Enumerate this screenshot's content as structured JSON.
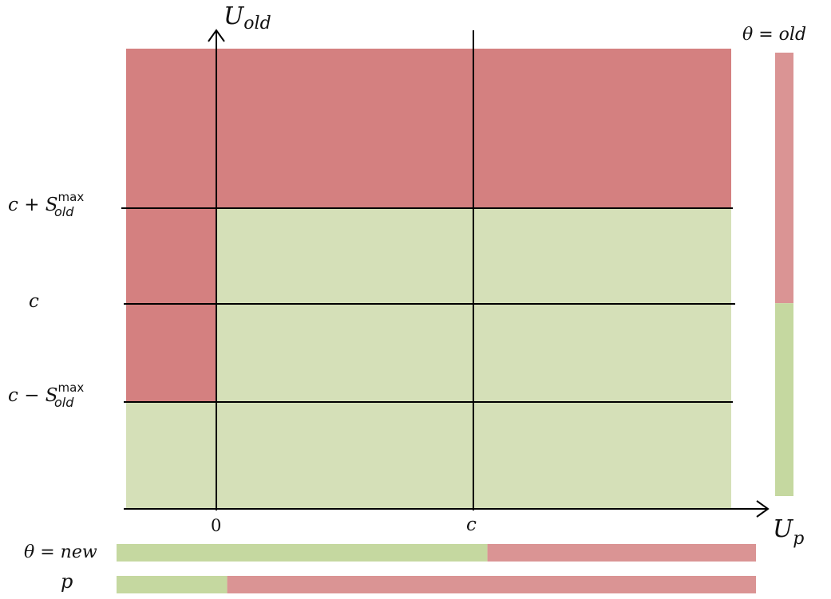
{
  "colors": {
    "red_region": "#D48080",
    "green_region": "#D5E0B8",
    "bar_red": "#DA9494",
    "bar_green": "#C5D8A0",
    "axis": "#000000"
  },
  "axes": {
    "y_label_main": "U",
    "y_label_sub": "old",
    "x_label_main": "U",
    "x_label_sub": "p",
    "x_tick_zero": "0",
    "x_tick_c": "c",
    "y_tick_c": "c",
    "y_tick_upper": {
      "prefix": "c + S",
      "sup": "max",
      "sub": "old"
    },
    "y_tick_lower": {
      "prefix": "c − S",
      "sup": "max",
      "sub": "old"
    }
  },
  "side_bar": {
    "label": "θ = old",
    "red_fraction": 0.565,
    "green_fraction": 0.435
  },
  "bottom_bars": [
    {
      "label": "θ = new",
      "green_fraction": 0.58,
      "red_fraction": 0.42
    },
    {
      "label": "p",
      "green_fraction": 0.173,
      "red_fraction": 0.827
    }
  ]
}
